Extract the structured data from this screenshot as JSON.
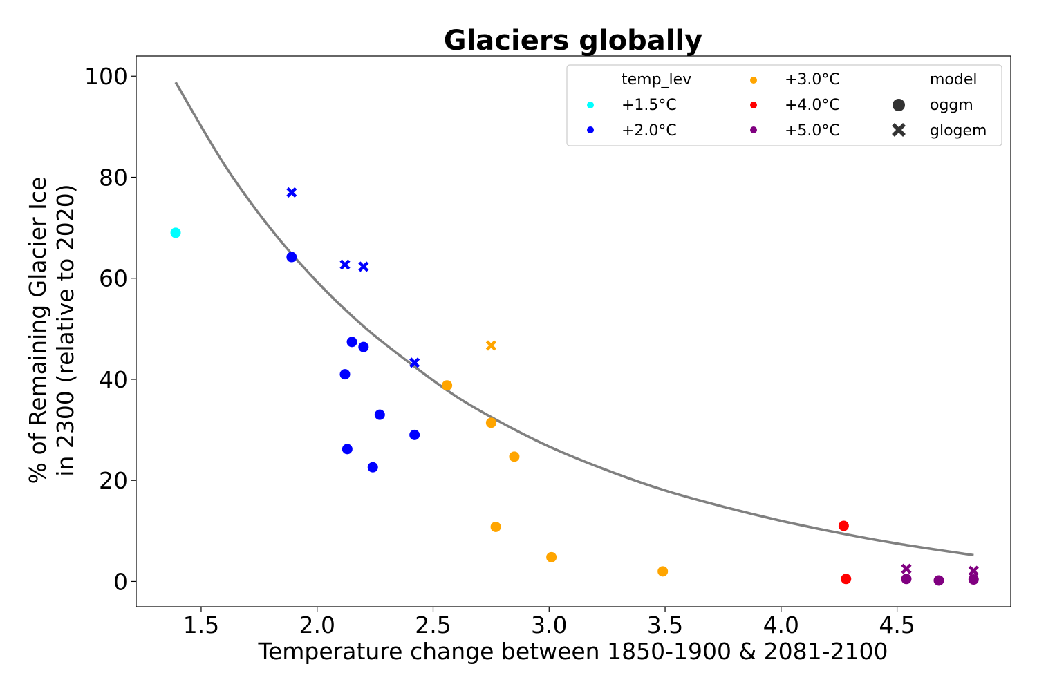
{
  "chart_data": {
    "type": "scatter",
    "title": "Glaciers globally",
    "xlabel": "Temperature change between 1850-1900 & 2081-2100",
    "ylabel_line1": "% of Remaining Glacier Ice",
    "ylabel_line2": "in 2300 (relative to 2020)",
    "xlim": [
      1.22,
      4.99
    ],
    "ylim": [
      -5,
      104
    ],
    "xticks": [
      1.5,
      2.0,
      2.5,
      3.0,
      3.5,
      4.0,
      4.5
    ],
    "xtick_labels": [
      "1.5",
      "2.0",
      "2.5",
      "3.0",
      "3.5",
      "4.0",
      "4.5"
    ],
    "yticks": [
      0,
      20,
      40,
      60,
      80,
      100
    ],
    "ytick_labels": [
      "0",
      "20",
      "40",
      "60",
      "80",
      "100"
    ],
    "legend": {
      "placement": "top-right",
      "temp_title": "temp_lev",
      "model_title": "model",
      "temp_levels": [
        {
          "label": "+1.5°C",
          "color": "#00ffff"
        },
        {
          "label": "+2.0°C",
          "color": "#0000ff"
        },
        {
          "label": "+3.0°C",
          "color": "#ffa500"
        },
        {
          "label": "+4.0°C",
          "color": "#ff0000"
        },
        {
          "label": "+5.0°C",
          "color": "#800080"
        }
      ],
      "models": [
        {
          "label": "oggm",
          "marker": "circle"
        },
        {
          "label": "glogem",
          "marker": "x"
        }
      ]
    },
    "fit_curve": {
      "color": "#808080",
      "x": [
        1.39,
        1.6,
        1.8,
        2.0,
        2.2,
        2.4,
        2.6,
        2.8,
        3.0,
        3.25,
        3.5,
        3.75,
        4.0,
        4.25,
        4.5,
        4.83
      ],
      "y": [
        98.8,
        82.5,
        69.8,
        59.3,
        50.5,
        43.2,
        36.6,
        31.3,
        26.7,
        22.0,
        18.0,
        14.8,
        12.0,
        9.6,
        7.5,
        5.2
      ]
    },
    "series": [
      {
        "name": "+1.5°C",
        "model": "oggm",
        "color": "#00ffff",
        "points": [
          [
            1.39,
            69.0
          ]
        ]
      },
      {
        "name": "+2.0°C",
        "model": "oggm",
        "color": "#0000ff",
        "points": [
          [
            1.89,
            64.2
          ],
          [
            2.15,
            47.4
          ],
          [
            2.2,
            46.4
          ],
          [
            2.12,
            41.0
          ],
          [
            2.27,
            33.0
          ],
          [
            2.42,
            29.0
          ],
          [
            2.13,
            26.2
          ],
          [
            2.24,
            22.6
          ]
        ]
      },
      {
        "name": "+2.0°C",
        "model": "glogem",
        "color": "#0000ff",
        "points": [
          [
            1.89,
            77.0
          ],
          [
            2.12,
            62.7
          ],
          [
            2.2,
            62.3
          ],
          [
            2.42,
            43.3
          ]
        ]
      },
      {
        "name": "+3.0°C",
        "model": "oggm",
        "color": "#ffa500",
        "points": [
          [
            2.56,
            38.8
          ],
          [
            2.75,
            31.4
          ],
          [
            2.85,
            24.7
          ],
          [
            2.77,
            10.8
          ],
          [
            3.01,
            4.8
          ],
          [
            3.49,
            2.0
          ]
        ]
      },
      {
        "name": "+3.0°C",
        "model": "glogem",
        "color": "#ffa500",
        "points": [
          [
            2.75,
            46.7
          ]
        ]
      },
      {
        "name": "+4.0°C",
        "model": "oggm",
        "color": "#ff0000",
        "points": [
          [
            4.27,
            11.0
          ],
          [
            4.28,
            0.5
          ]
        ]
      },
      {
        "name": "+5.0°C",
        "model": "oggm",
        "color": "#800080",
        "points": [
          [
            4.54,
            0.5
          ],
          [
            4.68,
            0.2
          ],
          [
            4.83,
            0.4
          ]
        ]
      },
      {
        "name": "+5.0°C",
        "model": "glogem",
        "color": "#800080",
        "points": [
          [
            4.54,
            2.5
          ],
          [
            4.83,
            2.1
          ]
        ]
      }
    ]
  }
}
